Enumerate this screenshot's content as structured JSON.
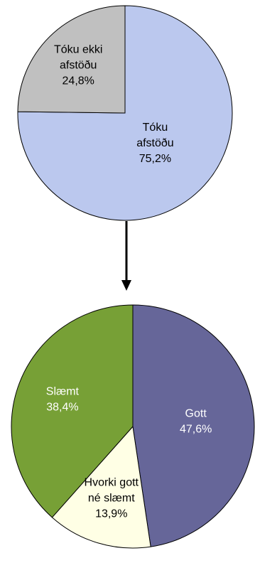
{
  "chart_data": [
    {
      "type": "pie",
      "title": "",
      "start": "top",
      "direction": "clockwise",
      "slices": [
        {
          "label_lines": [
            "Tóku",
            "afstöðu"
          ],
          "value": 75.2,
          "value_label": "75,2%",
          "color": "#BBC8EE",
          "text_color": "#000000"
        },
        {
          "label_lines": [
            "Tóku ekki",
            "afstöðu"
          ],
          "value": 24.8,
          "value_label": "24,8%",
          "color": "#C0C0C0",
          "text_color": "#000000"
        }
      ]
    },
    {
      "type": "pie",
      "title": "",
      "start": "top",
      "direction": "clockwise",
      "slices": [
        {
          "label_lines": [
            "Gott"
          ],
          "value": 47.6,
          "value_label": "47,6%",
          "color": "#666699",
          "text_color": "#ffffff"
        },
        {
          "label_lines": [
            "Hvorki gott",
            "né slæmt"
          ],
          "value": 13.9,
          "value_label": "13,9%",
          "color": "#FFFFE5",
          "text_color": "#000000"
        },
        {
          "label_lines": [
            "Slæmt"
          ],
          "value": 38.4,
          "value_label": "38,4%",
          "color": "#77A036",
          "text_color": "#ffffff"
        }
      ]
    }
  ],
  "connector": {
    "arrow_icon": "arrow-down-icon",
    "color": "#000000"
  }
}
